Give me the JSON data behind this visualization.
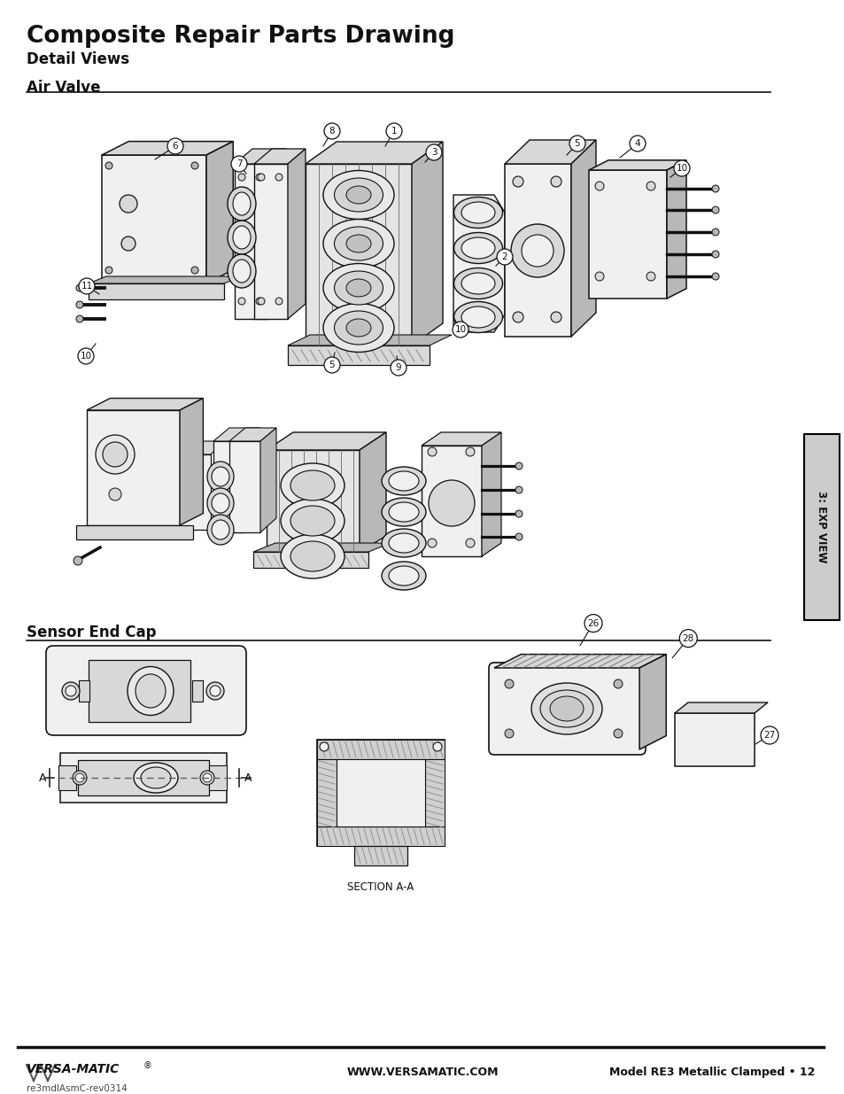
{
  "title": "Composite Repair Parts Drawing",
  "subtitle": "Detail Views",
  "section1_label": "Air Valve",
  "section2_label": "Sensor End Cap",
  "tab_text": "3: EXP VIEW",
  "footer_left_bold": "VERSA-MATIC",
  "footer_left2": "re3mdlAsmC-rev0314",
  "footer_center": "WWW.VERSAMATIC.COM",
  "footer_right": "Model RE3 Metallic Clamped • 12",
  "section_a_label": "SECTION A-A",
  "background_color": "#ffffff",
  "tab_bg_color": "#cccccc",
  "tab_border_color": "#000000",
  "line_color": "#000000",
  "text_color": "#000000",
  "fill_light": "#f0f0f0",
  "fill_mid": "#d8d8d8",
  "fill_dark": "#b8b8b8",
  "stroke": "#111111"
}
